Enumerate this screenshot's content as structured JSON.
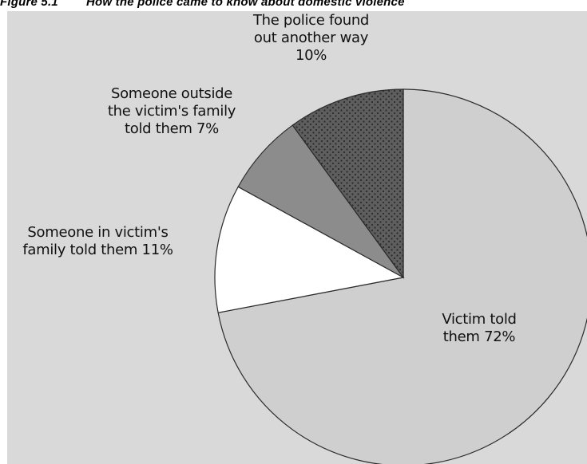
{
  "figure": {
    "number": "Figure 5.1",
    "title": "How the police came to know about domestic violence"
  },
  "chart_data": {
    "type": "pie",
    "slices": [
      {
        "label_lines": [
          "Victim told",
          "them 72%"
        ],
        "value": 72,
        "color": "#cfcfcf",
        "pattern": "none"
      },
      {
        "label_lines": [
          "Someone in victim's",
          "family told them 11%"
        ],
        "value": 11,
        "color": "#ffffff",
        "pattern": "none"
      },
      {
        "label_lines": [
          "Someone outside",
          "the victim's family",
          "told them 7%"
        ],
        "value": 7,
        "color": "#8c8c8c",
        "pattern": "none"
      },
      {
        "label_lines": [
          "The police found",
          "out another way",
          "10%"
        ],
        "value": 10,
        "color": "#5e5e5e",
        "pattern": "dots"
      }
    ]
  }
}
